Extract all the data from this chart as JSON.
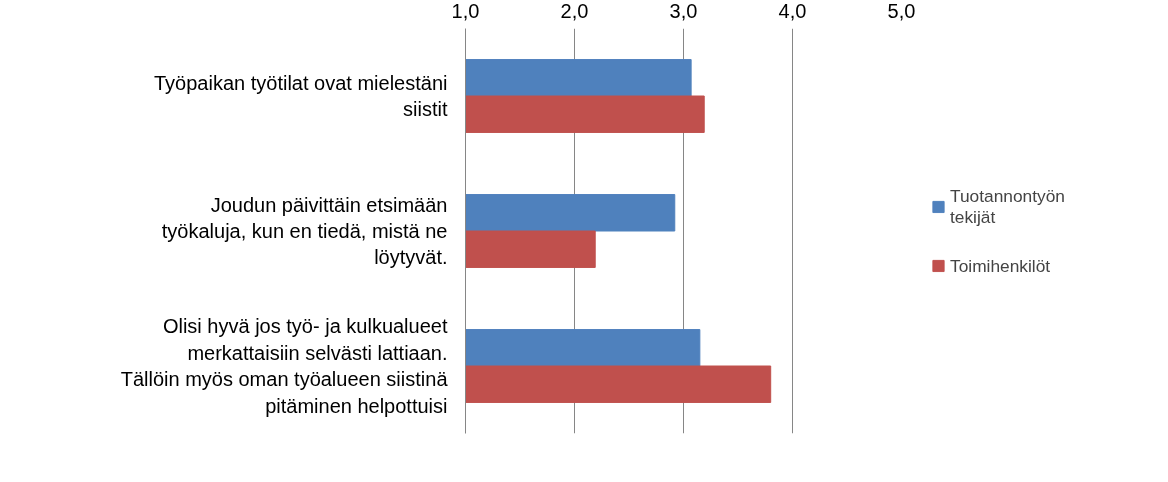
{
  "chart_data": {
    "type": "bar",
    "orientation": "horizontal",
    "categories": [
      "Työpaikan työtilat ovat mielestäni siistit",
      "Joudun päivittäin etsimään työkaluja, kun en tiedä, mistä ne löytyvät.",
      "Olisi hyvä jos työ- ja kulkualueet merkattaisiin selvästi lattiaan. Tällöin myös oman työalueen siistinä pitäminen helpottuisi"
    ],
    "series": [
      {
        "name": "Tuotannontyön tekijät",
        "color": "#4f81bd",
        "values": [
          3.07,
          2.92,
          3.15
        ]
      },
      {
        "name": "Toimihenkilöt",
        "color": "#c0504d",
        "values": [
          3.19,
          2.19,
          3.8
        ]
      }
    ],
    "xlim": [
      1,
      5
    ],
    "xticks": [
      {
        "value": 1,
        "label": "1,0"
      },
      {
        "value": 2,
        "label": "2,0"
      },
      {
        "value": 3,
        "label": "3,0"
      },
      {
        "value": 4,
        "label": "4,0"
      },
      {
        "value": 5,
        "label": "5,0"
      }
    ],
    "grid": "x",
    "legend": "right"
  }
}
